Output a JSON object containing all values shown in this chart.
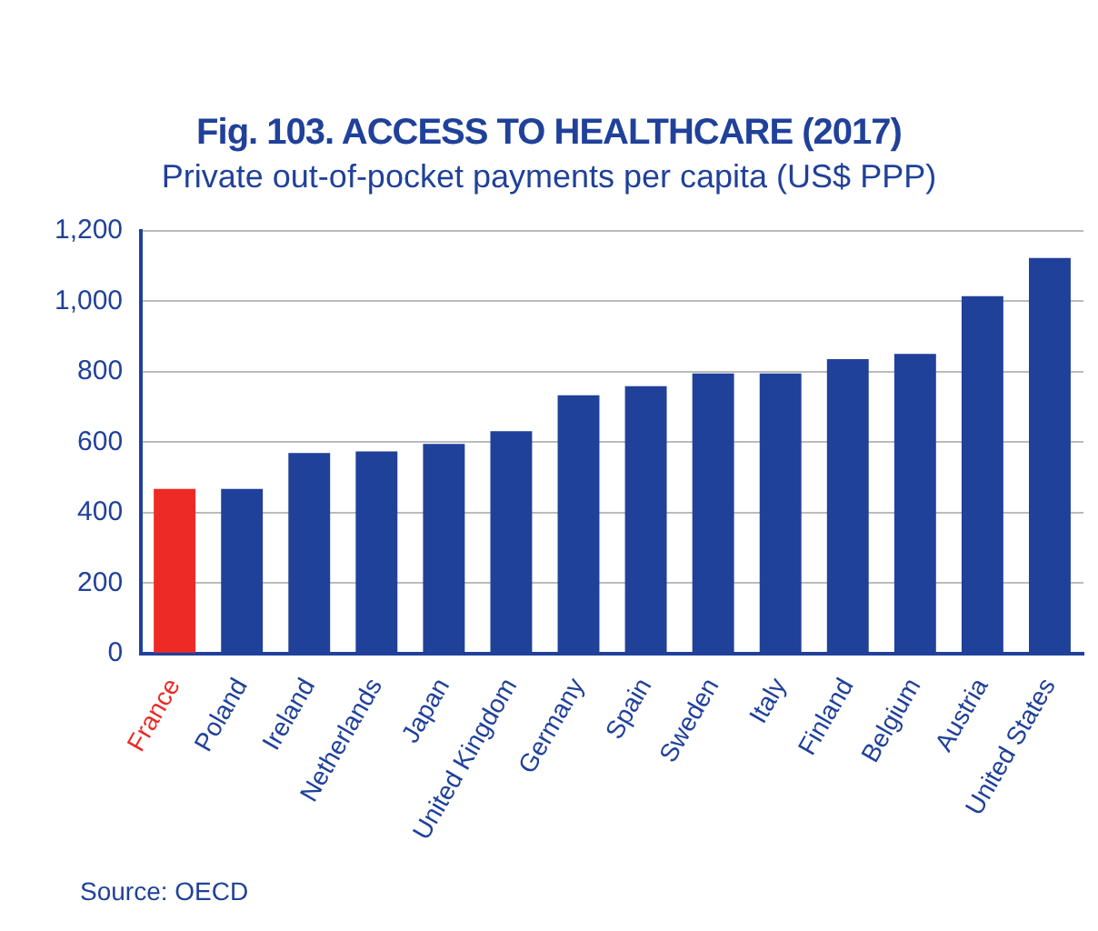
{
  "chart_data": {
    "type": "bar",
    "title": "Fig. 103. ACCESS TO HEALTHCARE (2017)",
    "subtitle": "Private out-of-pocket payments per capita (US$ PPP)",
    "categories": [
      "France",
      "Poland",
      "Ireland",
      "Netherlands",
      "Japan",
      "United Kingdom",
      "Germany",
      "Spain",
      "Sweden",
      "Italy",
      "Finland",
      "Belgium",
      "Austria",
      "United States"
    ],
    "values": [
      467,
      467,
      569,
      574,
      595,
      631,
      733,
      759,
      795,
      795,
      836,
      851,
      1015,
      1123
    ],
    "colors": [
      "#ee2a27",
      "#20419a",
      "#20419a",
      "#20419a",
      "#20419a",
      "#20419a",
      "#20419a",
      "#20419a",
      "#20419a",
      "#20419a",
      "#20419a",
      "#20419a",
      "#20419a",
      "#20419a"
    ],
    "ylim": [
      0,
      1200
    ],
    "yticks": [
      0,
      200,
      400,
      600,
      800,
      {
        "value": 1000,
        "label": "1,000"
      },
      {
        "value": 1200,
        "label": "1,200"
      }
    ],
    "grid": "y",
    "legend": false,
    "annotations": [
      "Source: OECD"
    ]
  }
}
